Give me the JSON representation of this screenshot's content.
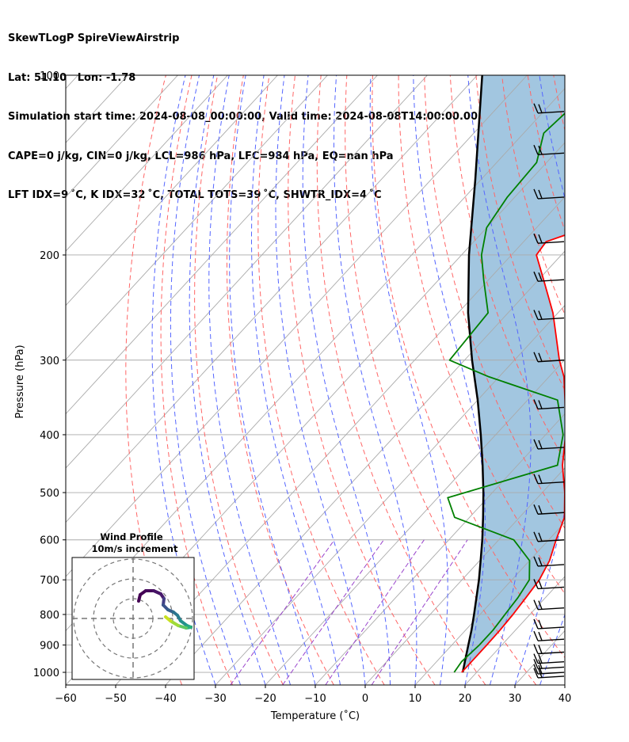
{
  "header": {
    "line1": "SkewTLogP SpireViewAirstrip",
    "line2": "Lat: 51.10   Lon: -1.78",
    "line3": "Simulation start time: 2024-08-08_00:00:00, Valid time: 2024-08-08T14:00:00.00",
    "line4": "CAPE=0 j/kg, CIN=0 j/kg, LCL=986 hPa, LFC=984 hPa, EQ=nan hPa",
    "line5": "LFT IDX=9 ˚C, K IDX=32 ˚C, TOTAL TOTS=39 ˚C, SHWTR_IDX=4 ˚C"
  },
  "chart_data": {
    "type": "line",
    "title": "SkewTLogP SpireViewAirstrip",
    "xlabel": "Temperature (˚C)",
    "ylabel": "Pressure (hPa)",
    "xlim": [
      -60,
      40
    ],
    "ylim_pressure": [
      1050,
      100
    ],
    "y_scale": "log",
    "grid": true,
    "x_ticks": [
      "−60",
      "−50",
      "−40",
      "−30",
      "−20",
      "−10",
      "0",
      "10",
      "20",
      "30",
      "40"
    ],
    "y_ticks": [
      "100",
      "200",
      "300",
      "400",
      "500",
      "600",
      "700",
      "800",
      "900",
      "1000"
    ],
    "colors": {
      "temperature": "#ff0000",
      "dewpoint": "#008000",
      "parcel": "#000000",
      "shading": "#a2c6e0",
      "dry_adiabat": "#ff6666",
      "moist_adiabat": "#5566ff",
      "mixing_ratio": "#9944cc",
      "isotherm": "#aaaaaa",
      "wind_barb": "#000000"
    },
    "temperature_profile": [
      {
        "p": 1000,
        "t": 17.0
      },
      {
        "p": 950,
        "t": 17.0
      },
      {
        "p": 900,
        "t": 17.0
      },
      {
        "p": 850,
        "t": 16.9
      },
      {
        "p": 800,
        "t": 16.6
      },
      {
        "p": 750,
        "t": 16.1
      },
      {
        "p": 700,
        "t": 15.5
      },
      {
        "p": 650,
        "t": 14.0
      },
      {
        "p": 600,
        "t": 11.5
      },
      {
        "p": 550,
        "t": 9.0
      },
      {
        "p": 500,
        "t": 4.5
      },
      {
        "p": 450,
        "t": -1.0
      },
      {
        "p": 400,
        "t": -6.0
      },
      {
        "p": 350,
        "t": -12.5
      },
      {
        "p": 320,
        "t": -17.0
      },
      {
        "p": 300,
        "t": -21.0
      },
      {
        "p": 250,
        "t": -31.0
      },
      {
        "p": 220,
        "t": -39.0
      },
      {
        "p": 200,
        "t": -45.0
      },
      {
        "p": 190,
        "t": -45.5
      },
      {
        "p": 180,
        "t": -40.0
      },
      {
        "p": 160,
        "t": -33.0
      },
      {
        "p": 145,
        "t": -28.5
      },
      {
        "p": 125,
        "t": -30.0
      },
      {
        "p": 110,
        "t": -32.5
      },
      {
        "p": 100,
        "t": -34.0
      }
    ],
    "dewpoint_profile": [
      {
        "p": 1000,
        "t": 15.5
      },
      {
        "p": 960,
        "t": 15.0
      },
      {
        "p": 900,
        "t": 15.5
      },
      {
        "p": 850,
        "t": 15.5
      },
      {
        "p": 800,
        "t": 15.0
      },
      {
        "p": 750,
        "t": 14.5
      },
      {
        "p": 700,
        "t": 13.5
      },
      {
        "p": 650,
        "t": 10.0
      },
      {
        "p": 600,
        "t": 3.0
      },
      {
        "p": 550,
        "t": -13.0
      },
      {
        "p": 510,
        "t": -18.0
      },
      {
        "p": 450,
        "t": -2.0
      },
      {
        "p": 400,
        "t": -6.5
      },
      {
        "p": 350,
        "t": -14.0
      },
      {
        "p": 320,
        "t": -32.0
      },
      {
        "p": 300,
        "t": -43.0
      },
      {
        "p": 250,
        "t": -44.0
      },
      {
        "p": 220,
        "t": -51.0
      },
      {
        "p": 200,
        "t": -56.0
      },
      {
        "p": 180,
        "t": -60.0
      },
      {
        "p": 160,
        "t": -61.5
      },
      {
        "p": 140,
        "t": -62.0
      },
      {
        "p": 125,
        "t": -66.0
      },
      {
        "p": 110,
        "t": -65.0
      },
      {
        "p": 100,
        "t": -66.0
      }
    ],
    "parcel_profile": [
      {
        "p": 1000,
        "t": 17.2
      },
      {
        "p": 950,
        "t": 15.3
      },
      {
        "p": 900,
        "t": 13.3
      },
      {
        "p": 850,
        "t": 11.2
      },
      {
        "p": 800,
        "t": 8.8
      },
      {
        "p": 750,
        "t": 6.2
      },
      {
        "p": 700,
        "t": 3.4
      },
      {
        "p": 650,
        "t": 0.2
      },
      {
        "p": 600,
        "t": -3.3
      },
      {
        "p": 550,
        "t": -7.3
      },
      {
        "p": 500,
        "t": -11.8
      },
      {
        "p": 450,
        "t": -17.0
      },
      {
        "p": 400,
        "t": -23.0
      },
      {
        "p": 350,
        "t": -30.0
      },
      {
        "p": 300,
        "t": -38.5
      },
      {
        "p": 250,
        "t": -48.0
      },
      {
        "p": 200,
        "t": -58.5
      },
      {
        "p": 150,
        "t": -71.0
      },
      {
        "p": 100,
        "t": -89.0
      }
    ],
    "wind_barb_pressures": [
      1015,
      1000,
      980,
      960,
      925,
      880,
      840,
      780,
      720,
      660,
      600,
      540,
      480,
      420,
      360,
      300,
      255,
      220,
      190,
      160,
      135,
      115
    ]
  },
  "inset": {
    "title_line1": "Wind Profile",
    "title_line2": "10m/s increment"
  }
}
